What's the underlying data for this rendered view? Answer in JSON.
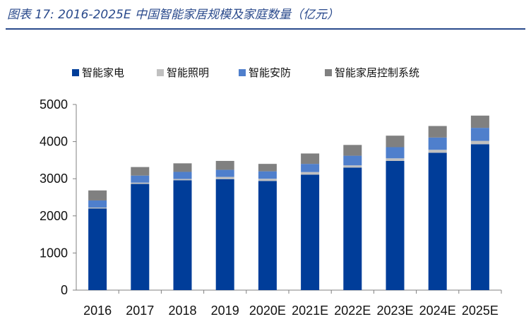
{
  "title": "图表 17:  2016-2025E 中国智能家居规模及家庭数量（亿元）",
  "chart_data": {
    "type": "bar",
    "stacked": true,
    "title": "图表 17:  2016-2025E 中国智能家居规模及家庭数量（亿元）",
    "xlabel": "",
    "ylabel": "",
    "ylim": [
      0,
      5000
    ],
    "yticks": [
      0,
      1000,
      2000,
      3000,
      4000,
      5000
    ],
    "grid": false,
    "legend_position": "top",
    "categories": [
      "2016",
      "2017",
      "2018",
      "2019",
      "2020E",
      "2021E",
      "2022E",
      "2023E",
      "2024E",
      "2025E"
    ],
    "series": [
      {
        "name": "智能家电",
        "color": "#003d99",
        "values": [
          2200,
          2860,
          2960,
          2990,
          2940,
          3110,
          3300,
          3480,
          3700,
          3930
        ]
      },
      {
        "name": "智能照明",
        "color": "#c0c0c0",
        "values": [
          25,
          35,
          35,
          60,
          60,
          70,
          60,
          70,
          80,
          90
        ]
      },
      {
        "name": "智能安防",
        "color": "#4f7fcc",
        "values": [
          190,
          190,
          190,
          190,
          200,
          220,
          260,
          300,
          330,
          350
        ]
      },
      {
        "name": "智能家居控制系统",
        "color": "#808080",
        "values": [
          270,
          230,
          230,
          240,
          200,
          280,
          290,
          310,
          310,
          330
        ]
      }
    ]
  }
}
